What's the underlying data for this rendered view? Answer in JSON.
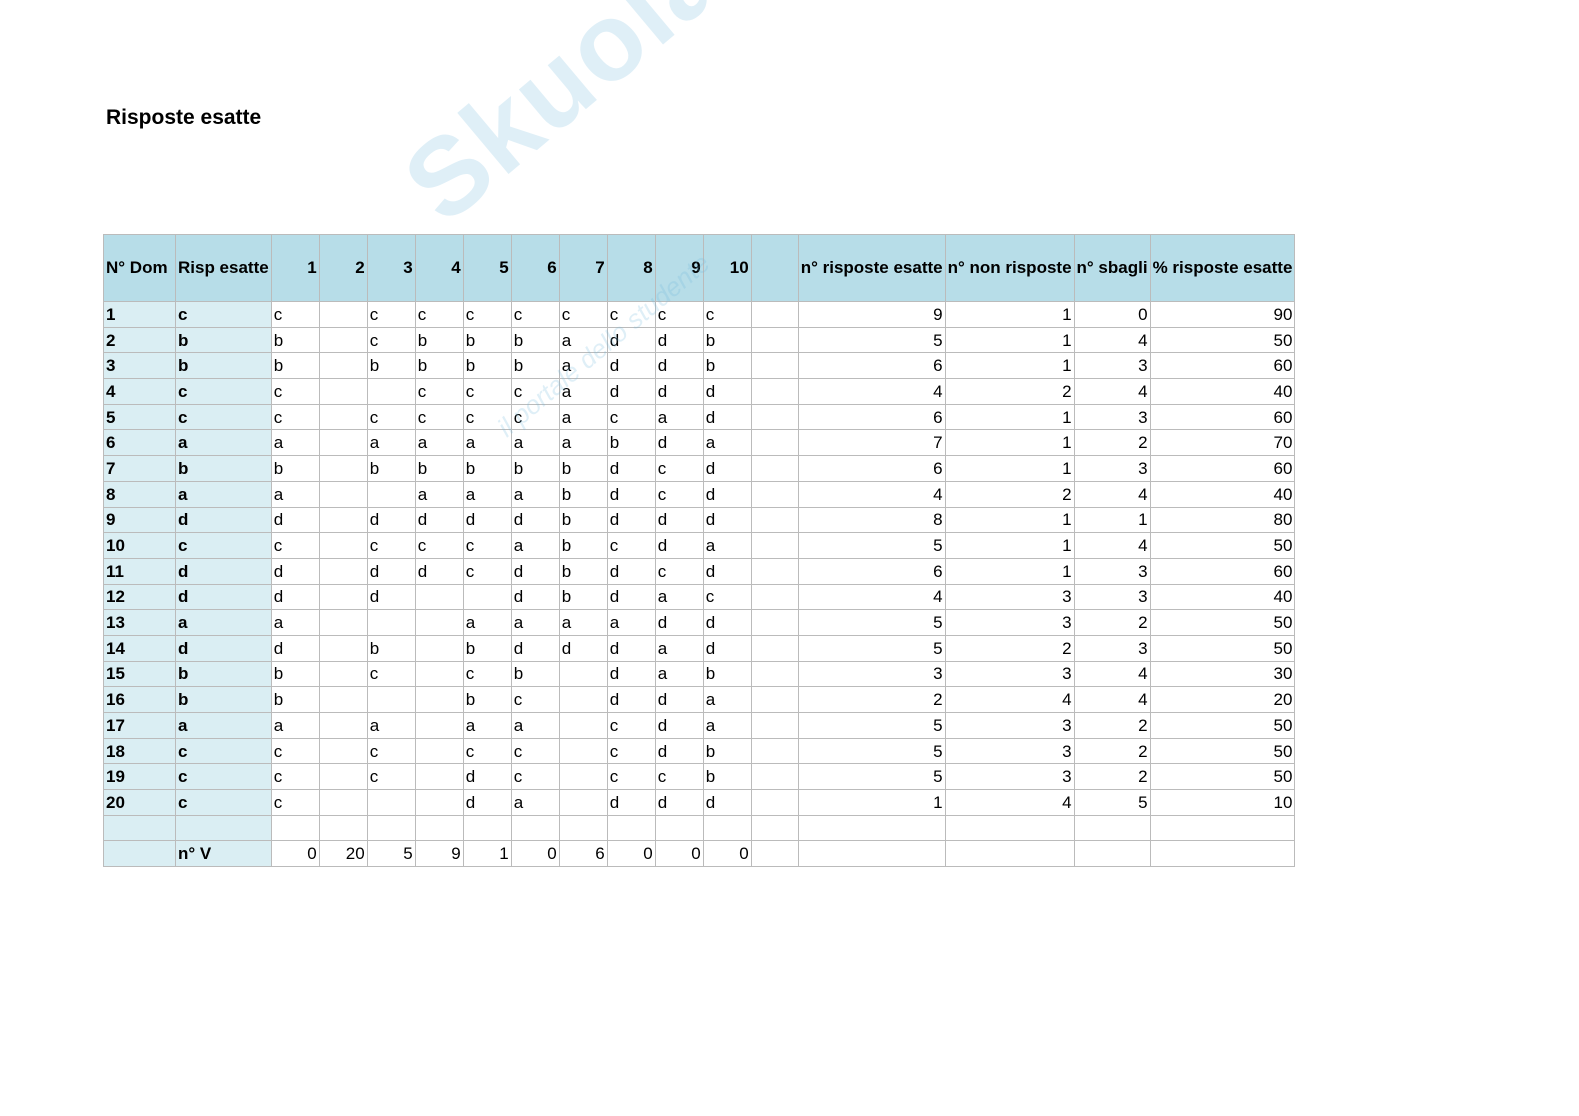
{
  "title": "Risposte esatte",
  "watermark": {
    "logo": "Skuola.net",
    "tagline": "il portale dello studente"
  },
  "headers": [
    "N° Dom",
    "Risp esatte",
    "1",
    "2",
    "3",
    "4",
    "5",
    "6",
    "7",
    "8",
    "9",
    "10",
    "",
    "n° risposte esatte",
    "n° non risposte",
    "n° sbagli",
    "% risposte esatte"
  ],
  "rows": [
    {
      "n": "1",
      "c": "c",
      "a": [
        "c",
        "",
        "c",
        "c",
        "c",
        "c",
        "c",
        "c",
        "c",
        "c"
      ],
      "s": [
        "9",
        "1",
        "0",
        "90"
      ]
    },
    {
      "n": "2",
      "c": "b",
      "a": [
        "b",
        "",
        "c",
        "b",
        "b",
        "b",
        "a",
        "d",
        "d",
        "b"
      ],
      "s": [
        "5",
        "1",
        "4",
        "50"
      ]
    },
    {
      "n": "3",
      "c": "b",
      "a": [
        "b",
        "",
        "b",
        "b",
        "b",
        "b",
        "a",
        "d",
        "d",
        "b"
      ],
      "s": [
        "6",
        "1",
        "3",
        "60"
      ]
    },
    {
      "n": "4",
      "c": "c",
      "a": [
        "c",
        "",
        "",
        "c",
        "c",
        "c",
        "a",
        "d",
        "d",
        "d"
      ],
      "s": [
        "4",
        "2",
        "4",
        "40"
      ]
    },
    {
      "n": "5",
      "c": "c",
      "a": [
        "c",
        "",
        "c",
        "c",
        "c",
        "c",
        "a",
        "c",
        "a",
        "d"
      ],
      "s": [
        "6",
        "1",
        "3",
        "60"
      ]
    },
    {
      "n": "6",
      "c": "a",
      "a": [
        "a",
        "",
        "a",
        "a",
        "a",
        "a",
        "a",
        "b",
        "d",
        "a"
      ],
      "s": [
        "7",
        "1",
        "2",
        "70"
      ]
    },
    {
      "n": "7",
      "c": "b",
      "a": [
        "b",
        "",
        "b",
        "b",
        "b",
        "b",
        "b",
        "d",
        "c",
        "d"
      ],
      "s": [
        "6",
        "1",
        "3",
        "60"
      ]
    },
    {
      "n": "8",
      "c": "a",
      "a": [
        "a",
        "",
        "",
        "a",
        "a",
        "a",
        "b",
        "d",
        "c",
        "d"
      ],
      "s": [
        "4",
        "2",
        "4",
        "40"
      ]
    },
    {
      "n": "9",
      "c": "d",
      "a": [
        "d",
        "",
        "d",
        "d",
        "d",
        "d",
        "b",
        "d",
        "d",
        "d"
      ],
      "s": [
        "8",
        "1",
        "1",
        "80"
      ]
    },
    {
      "n": "10",
      "c": "c",
      "a": [
        "c",
        "",
        "c",
        "c",
        "c",
        "a",
        "b",
        "c",
        "d",
        "a"
      ],
      "s": [
        "5",
        "1",
        "4",
        "50"
      ]
    },
    {
      "n": "11",
      "c": "d",
      "a": [
        "d",
        "",
        "d",
        "d",
        "c",
        "d",
        "b",
        "d",
        "c",
        "d"
      ],
      "s": [
        "6",
        "1",
        "3",
        "60"
      ]
    },
    {
      "n": "12",
      "c": "d",
      "a": [
        "d",
        "",
        "d",
        "",
        "",
        "d",
        "b",
        "d",
        "a",
        "c"
      ],
      "s": [
        "4",
        "3",
        "3",
        "40"
      ]
    },
    {
      "n": "13",
      "c": "a",
      "a": [
        "a",
        "",
        "",
        "",
        "a",
        "a",
        "a",
        "a",
        "d",
        "d"
      ],
      "s": [
        "5",
        "3",
        "2",
        "50"
      ]
    },
    {
      "n": "14",
      "c": "d",
      "a": [
        "d",
        "",
        "b",
        "",
        "b",
        "d",
        "d",
        "d",
        "a",
        "d"
      ],
      "s": [
        "5",
        "2",
        "3",
        "50"
      ]
    },
    {
      "n": "15",
      "c": "b",
      "a": [
        "b",
        "",
        "c",
        "",
        "c",
        "b",
        "",
        "d",
        "a",
        "b"
      ],
      "s": [
        "3",
        "3",
        "4",
        "30"
      ]
    },
    {
      "n": "16",
      "c": "b",
      "a": [
        "b",
        "",
        "",
        "",
        "b",
        "c",
        "",
        "d",
        "d",
        "a"
      ],
      "s": [
        "2",
        "4",
        "4",
        "20"
      ]
    },
    {
      "n": "17",
      "c": "a",
      "a": [
        "a",
        "",
        "a",
        "",
        "a",
        "a",
        "",
        "c",
        "d",
        "a"
      ],
      "s": [
        "5",
        "3",
        "2",
        "50"
      ]
    },
    {
      "n": "18",
      "c": "c",
      "a": [
        "c",
        "",
        "c",
        "",
        "c",
        "c",
        "",
        "c",
        "d",
        "b"
      ],
      "s": [
        "5",
        "3",
        "2",
        "50"
      ]
    },
    {
      "n": "19",
      "c": "c",
      "a": [
        "c",
        "",
        "c",
        "",
        "d",
        "c",
        "",
        "c",
        "c",
        "b"
      ],
      "s": [
        "5",
        "3",
        "2",
        "50"
      ]
    },
    {
      "n": "20",
      "c": "c",
      "a": [
        "c",
        "",
        "",
        "",
        "d",
        "a",
        "",
        "d",
        "d",
        "d"
      ],
      "s": [
        "1",
        "4",
        "5",
        "10"
      ]
    }
  ],
  "totals": {
    "label": "n° V",
    "values": [
      "0",
      "20",
      "5",
      "9",
      "1",
      "0",
      "6",
      "0",
      "0",
      "0"
    ]
  }
}
